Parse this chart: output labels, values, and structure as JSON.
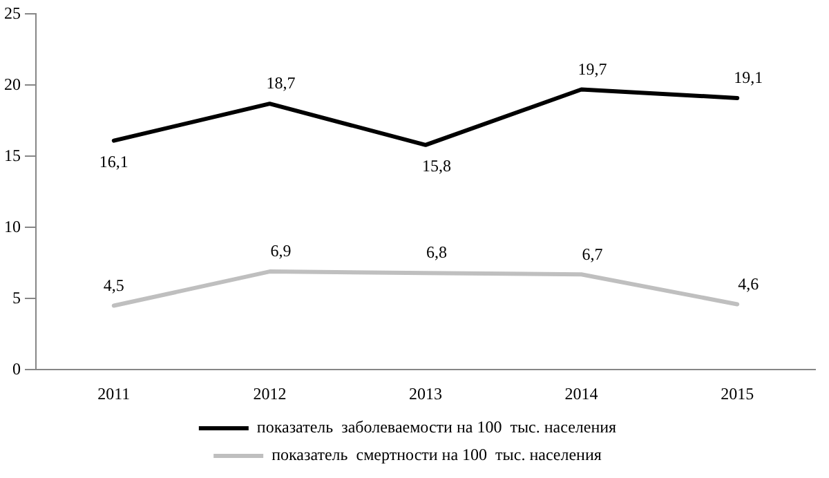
{
  "chart_data": {
    "type": "line",
    "categories": [
      "2011",
      "2012",
      "2013",
      "2014",
      "2015"
    ],
    "series": [
      {
        "name": "показатель  заболеваемости на 100  тыс. населения",
        "color": "#000000",
        "values": [
          16.1,
          18.7,
          15.8,
          19.7,
          19.1
        ],
        "value_labels": [
          "16,1",
          "18,7",
          "15,8",
          "19,7",
          "19,1"
        ]
      },
      {
        "name": "показатель  смертности на 100  тыс. населения",
        "color": "#bfbfbf",
        "values": [
          4.5,
          6.9,
          6.8,
          6.7,
          4.6
        ],
        "value_labels": [
          "4,5",
          "6,9",
          "6,8",
          "6,7",
          "4,6"
        ]
      }
    ],
    "ylim": [
      0,
      25
    ],
    "yticks": [
      0,
      5,
      10,
      15,
      20,
      25
    ],
    "grid": false,
    "legend": "bottom",
    "marker": "none",
    "line_style": "solid"
  }
}
